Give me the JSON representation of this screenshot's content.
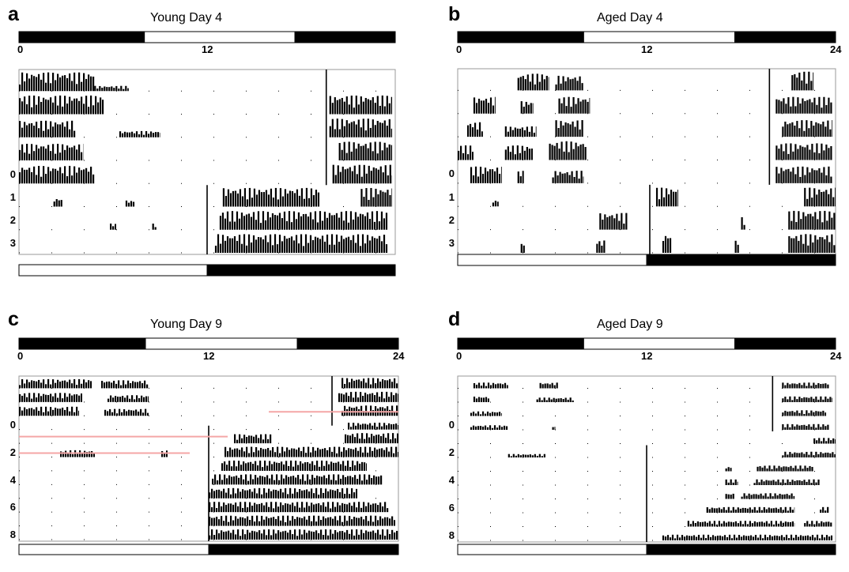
{
  "figure": {
    "bar_colors": {
      "light": "#ffffff",
      "dark": "#000000",
      "guide_line": "#f4a6a6"
    }
  },
  "chart_data": [
    {
      "type": "actogram",
      "letter": "a",
      "title": "Young Day 4",
      "x_ticks": [
        "0",
        "12"
      ],
      "day_labels": [
        "0",
        "1",
        "2",
        "3"
      ],
      "top_light_dark": [
        [
          0,
          4,
          "dark"
        ],
        [
          4,
          8.8,
          "light"
        ],
        [
          8.8,
          12,
          "dark"
        ]
      ],
      "bottom_light_dark": [
        [
          0,
          12,
          "light"
        ],
        [
          12,
          24,
          "dark"
        ]
      ],
      "rows": 8,
      "shift_line_x": [
        [
          0,
          5,
          19.6
        ],
        [
          5,
          8,
          12
        ]
      ],
      "activity": [
        [
          [
            0,
            4.8,
            0.9
          ],
          [
            4.8,
            7,
            0.25
          ]
        ],
        [
          [
            0,
            5.4,
            0.9
          ],
          [
            19.8,
            23.8,
            0.9
          ]
        ],
        [
          [
            0,
            3.6,
            0.8
          ],
          [
            6.4,
            9,
            0.3
          ],
          [
            19.8,
            23.8,
            0.9
          ]
        ],
        [
          [
            0,
            4.1,
            0.8
          ],
          [
            20.4,
            23.8,
            0.9
          ]
        ],
        [
          [
            0,
            4.8,
            0.85
          ],
          [
            20,
            23.8,
            0.9
          ]
        ],
        [
          [
            2.2,
            2.8,
            0.4
          ],
          [
            6.8,
            7.4,
            0.3
          ],
          [
            13,
            19.2,
            0.9
          ],
          [
            21.8,
            23.8,
            0.9
          ]
        ],
        [
          [
            5.8,
            6.2,
            0.3
          ],
          [
            8.5,
            8.8,
            0.3
          ],
          [
            12.8,
            23.5,
            0.9
          ]
        ],
        [
          [
            12.5,
            23.5,
            0.9
          ]
        ]
      ]
    },
    {
      "type": "actogram",
      "letter": "b",
      "title": "Aged Day 4",
      "x_ticks": [
        "0",
        "12",
        "24"
      ],
      "day_labels": [
        "0",
        "1",
        "2",
        "3"
      ],
      "top_light_dark": [
        [
          0,
          4,
          "dark"
        ],
        [
          4,
          8.8,
          "light"
        ],
        [
          8.8,
          12,
          "dark"
        ]
      ],
      "bottom_light_dark": [
        [
          0,
          12,
          "light"
        ],
        [
          12,
          24,
          "dark"
        ]
      ],
      "rows": 8,
      "shift_line_x": [
        [
          0,
          5,
          19.8
        ],
        [
          5,
          8,
          12.2
        ]
      ],
      "activity": [
        [
          [
            3.8,
            5.8,
            0.8
          ],
          [
            6.2,
            8,
            0.7
          ],
          [
            21.2,
            22.6,
            0.9
          ]
        ],
        [
          [
            1,
            2.4,
            0.8
          ],
          [
            4,
            4.8,
            0.6
          ],
          [
            6.4,
            8.4,
            0.8
          ],
          [
            20.2,
            23.8,
            0.8
          ]
        ],
        [
          [
            0.6,
            1.6,
            0.7
          ],
          [
            3,
            5,
            0.5
          ],
          [
            6.2,
            8,
            0.8
          ],
          [
            20.6,
            23.8,
            0.8
          ]
        ],
        [
          [
            0,
            1,
            0.7
          ],
          [
            3,
            4.8,
            0.7
          ],
          [
            5.8,
            8.2,
            0.9
          ],
          [
            20.2,
            23.8,
            0.8
          ]
        ],
        [
          [
            0.8,
            2.8,
            0.8
          ],
          [
            3.8,
            4.2,
            0.6
          ],
          [
            6,
            8,
            0.6
          ],
          [
            20.2,
            23.8,
            0.8
          ]
        ],
        [
          [
            2.2,
            2.6,
            0.3
          ],
          [
            12.6,
            14,
            0.9
          ],
          [
            22,
            24,
            0.9
          ]
        ],
        [
          [
            9,
            10.8,
            0.8
          ],
          [
            18,
            18.3,
            0.6
          ],
          [
            21,
            24,
            0.9
          ]
        ],
        [
          [
            4,
            4.3,
            0.5
          ],
          [
            8.8,
            9.4,
            0.6
          ],
          [
            13,
            13.6,
            0.9
          ],
          [
            17.6,
            17.9,
            0.6
          ],
          [
            21,
            24,
            0.9
          ]
        ]
      ]
    },
    {
      "type": "actogram",
      "letter": "c",
      "title": "Young Day 9",
      "x_ticks": [
        "0",
        "12",
        "24"
      ],
      "day_labels": [
        "0",
        "2",
        "4",
        "6",
        "8"
      ],
      "top_light_dark": [
        [
          0,
          4,
          "dark"
        ],
        [
          4,
          8.8,
          "light"
        ],
        [
          8.8,
          12,
          "dark"
        ]
      ],
      "bottom_light_dark": [
        [
          0,
          12,
          "light"
        ],
        [
          12,
          24,
          "dark"
        ]
      ],
      "rows": 12,
      "shift_line_x": [
        [
          0,
          3.6,
          19.8
        ],
        [
          3.6,
          12,
          12
        ]
      ],
      "activity": [
        [
          [
            0,
            4.6,
            0.8
          ],
          [
            5.2,
            8.2,
            0.7
          ],
          [
            20.4,
            24,
            0.9
          ]
        ],
        [
          [
            0,
            4,
            0.8
          ],
          [
            5.6,
            8.2,
            0.6
          ],
          [
            20.2,
            24,
            0.9
          ]
        ],
        [
          [
            0,
            3.8,
            0.8
          ],
          [
            5.4,
            8.2,
            0.6
          ],
          [
            20.4,
            24,
            0.9
          ]
        ],
        [
          [
            20.8,
            24,
            0.6
          ]
        ],
        [
          [
            13.6,
            16,
            0.8
          ],
          [
            20.6,
            24,
            0.9
          ]
        ],
        [
          [
            2.6,
            4.8,
            0.6
          ],
          [
            9,
            9.4,
            0.6
          ],
          [
            13,
            24,
            0.9
          ]
        ],
        [
          [
            12.8,
            22,
            0.9
          ]
        ],
        [
          [
            12.2,
            23,
            0.9
          ]
        ],
        [
          [
            12,
            21.4,
            0.9
          ]
        ],
        [
          [
            12,
            23.4,
            0.9
          ]
        ],
        [
          [
            12,
            23.8,
            0.9
          ]
        ],
        [
          [
            12,
            24,
            0.9
          ]
        ]
      ],
      "guide_lines": [
        [
          2.6,
          15.8,
          24
        ],
        [
          4.4,
          0,
          13.2
        ],
        [
          5.6,
          0,
          10.8
        ]
      ]
    },
    {
      "type": "actogram",
      "letter": "d",
      "title": "Aged Day 9",
      "x_ticks": [
        "0",
        "12",
        "24"
      ],
      "day_labels": [
        "0",
        "2",
        "4",
        "6",
        "8"
      ],
      "top_light_dark": [
        [
          0,
          4,
          "dark"
        ],
        [
          4,
          8.8,
          "light"
        ],
        [
          8.8,
          12,
          "dark"
        ]
      ],
      "bottom_light_dark": [
        [
          0,
          12,
          "light"
        ],
        [
          12,
          24,
          "dark"
        ]
      ],
      "rows": 12,
      "shift_line_x": [
        [
          0,
          4,
          20
        ],
        [
          5,
          12,
          12
        ]
      ],
      "activity": [
        [
          [
            1,
            3.2,
            0.5
          ],
          [
            5.2,
            6.4,
            0.5
          ],
          [
            20.6,
            23.6,
            0.5
          ]
        ],
        [
          [
            1,
            2,
            0.5
          ],
          [
            5,
            7.4,
            0.4
          ],
          [
            20.6,
            23.8,
            0.5
          ]
        ],
        [
          [
            0.8,
            2.8,
            0.4
          ],
          [
            20.6,
            23.4,
            0.5
          ]
        ],
        [
          [
            0.8,
            3.2,
            0.4
          ],
          [
            6,
            6.2,
            0.3
          ],
          [
            20.6,
            23.6,
            0.5
          ]
        ],
        [
          [
            22.6,
            24,
            0.5
          ]
        ],
        [
          [
            3.2,
            5.6,
            0.3
          ],
          [
            20.6,
            24,
            0.5
          ]
        ],
        [
          [
            17,
            17.4,
            0.4
          ],
          [
            19,
            22.6,
            0.5
          ]
        ],
        [
          [
            17,
            17.8,
            0.5
          ],
          [
            18.8,
            23,
            0.5
          ]
        ],
        [
          [
            17,
            17.6,
            0.5
          ],
          [
            18,
            21.4,
            0.5
          ]
        ],
        [
          [
            15.8,
            21.4,
            0.5
          ],
          [
            23,
            23.6,
            0.5
          ]
        ],
        [
          [
            14.6,
            21.4,
            0.5
          ],
          [
            22,
            23.8,
            0.5
          ]
        ],
        [
          [
            13,
            23.8,
            0.5
          ]
        ]
      ]
    }
  ]
}
